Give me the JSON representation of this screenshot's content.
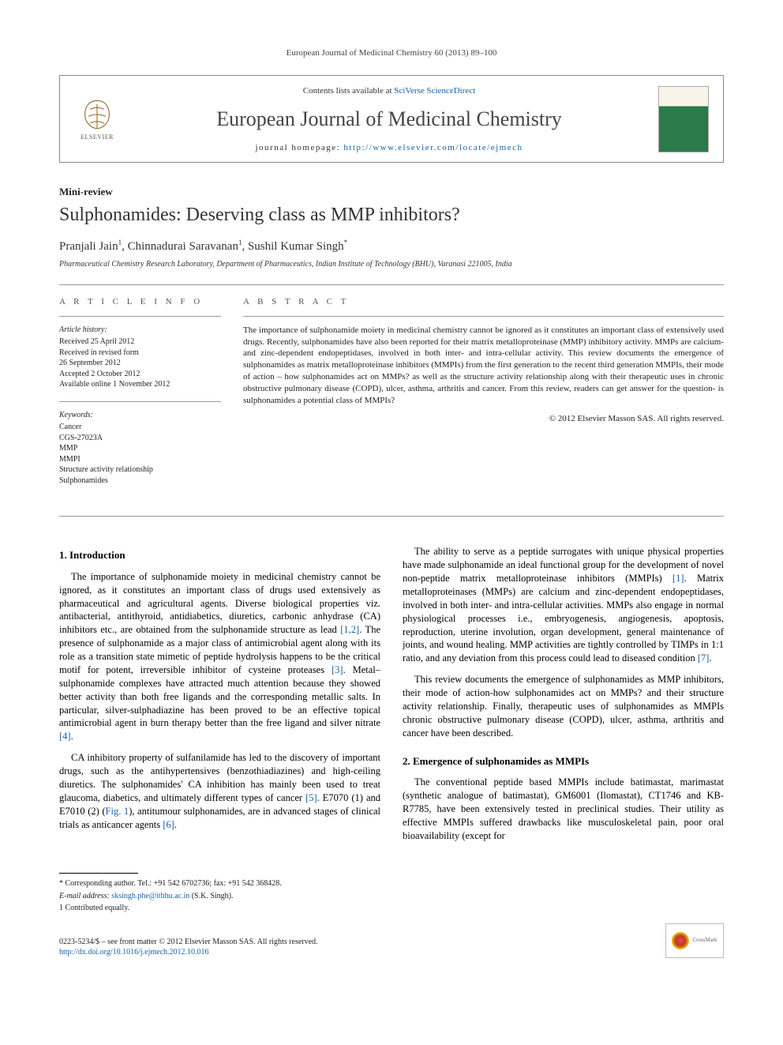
{
  "citation": "European Journal of Medicinal Chemistry 60 (2013) 89–100",
  "header": {
    "contents_prefix": "Contents lists available at ",
    "contents_link": "SciVerse ScienceDirect",
    "journal_name": "European Journal of Medicinal Chemistry",
    "homepage_prefix": "journal homepage: ",
    "homepage_url": "http://www.elsevier.com/locate/ejmech",
    "publisher_label": "ELSEVIER"
  },
  "article": {
    "type": "Mini-review",
    "title": "Sulphonamides: Deserving class as MMP inhibitors?",
    "authors_html": "Pranjali Jain<sup>1</sup>, Chinnadurai Saravanan<sup>1</sup>, Sushil Kumar Singh<sup>*</sup>",
    "authors_text": "Pranjali Jain 1, Chinnadurai Saravanan 1, Sushil Kumar Singh *",
    "affiliation": "Pharmaceutical Chemistry Research Laboratory, Department of Pharmaceutics, Indian Institute of Technology (BHU), Varanasi 221005, India"
  },
  "article_info": {
    "heading": "A R T I C L E   I N F O",
    "history_label": "Article history:",
    "history": [
      "Received 25 April 2012",
      "Received in revised form",
      "26 September 2012",
      "Accepted 2 October 2012",
      "Available online 1 November 2012"
    ],
    "keywords_label": "Keywords:",
    "keywords": [
      "Cancer",
      "CGS-27023A",
      "MMP",
      "MMPI",
      "Structure activity relationship",
      "Sulphonamides"
    ]
  },
  "abstract": {
    "heading": "A B S T R A C T",
    "text": "The importance of sulphonamide moiety in medicinal chemistry cannot be ignored as it constitutes an important class of extensively used drugs. Recently, sulphonamides have also been reported for their matrix metalloproteinase (MMP) inhibitory activity. MMPs are calcium- and zinc-dependent endopeptidases, involved in both inter- and intra-cellular activity. This review documents the emergence of sulphonamides as matrix metalloproteinase inhibitors (MMPIs) from the first generation to the recent third generation MMPIs, their mode of action – how sulphonamides act on MMPs? as well as the structure activity relationship along with their therapeutic uses in chronic obstructive pulmonary disease (COPD), ulcer, asthma, arthritis and cancer. From this review, readers can get answer for the question- is sulphonamides a potential class of MMPIs?",
    "copyright": "© 2012 Elsevier Masson SAS. All rights reserved."
  },
  "sections": {
    "s1": {
      "heading": "1.  Introduction",
      "p1": "The importance of sulphonamide moiety in medicinal chemistry cannot be ignored, as it constitutes an important class of drugs used extensively as pharmaceutical and agricultural agents. Diverse biological properties viz. antibacterial, antithyroid, antidiabetics, diuretics, carbonic anhydrase (CA) inhibitors etc., are obtained from the sulphonamide structure as lead ",
      "p1_ref": "[1,2]",
      "p1b": ". The presence of sulphonamide as a major class of antimicrobial agent along with its role as a transition state mimetic of peptide hydrolysis happens to be the critical motif for potent, irreversible inhibitor of cysteine proteases ",
      "p1b_ref": "[3]",
      "p1c": ". Metal–sulphonamide complexes have attracted much attention because they showed better activity than both free ligands and the corresponding metallic salts. In particular, silver-sulphadiazine has been proved to be an effective topical antimicrobial agent in burn therapy better than the free ligand and silver nitrate ",
      "p1c_ref": "[4]",
      "p1d": ".",
      "p2": "CA inhibitory property of sulfanilamide has led to the discovery of important drugs, such as the antihypertensives (benzothiadiazines) and high-ceiling diuretics. The sulphonamides' CA inhibition has mainly been used to treat glaucoma, diabetics, and ultimately different types of cancer ",
      "p2_ref": "[5]",
      "p2b": ". E7070 (1) and E7010 (2) (",
      "p2_fig": "Fig. 1",
      "p2c": "), antitumour sulphonamides, are in advanced stages of clinical trials as anticancer agents ",
      "p2c_ref": "[6]",
      "p2d": ".",
      "p3": "The ability to serve as a peptide surrogates with unique physical properties have made sulphonamide an ideal functional group for the development of novel non-peptide matrix metalloproteinase inhibitors (MMPIs) ",
      "p3_ref": "[1]",
      "p3b": ". Matrix metalloproteinases (MMPs) are calcium and zinc-dependent endopeptidases, involved in both inter- and intra-cellular activities. MMPs also engage in normal physiological processes i.e., embryogenesis, angiogenesis, apoptosis, reproduction, uterine involution, organ development, general maintenance of joints, and wound healing. MMP activities are tightly controlled by TIMPs in 1:1 ratio, and any deviation from this process could lead to diseased condition ",
      "p3b_ref": "[7]",
      "p3c": ".",
      "p4": "This review documents the emergence of sulphonamides as MMP inhibitors, their mode of action-how sulphonamides act on MMPs? and their structure activity relationship. Finally, therapeutic uses of sulphonamides as MMPIs chronic obstructive pulmonary disease (COPD), ulcer, asthma, arthritis and cancer have been described."
    },
    "s2": {
      "heading": "2.  Emergence of sulphonamides as MMPIs",
      "p1": "The conventional peptide based MMPIs include batimastat, marimastat (synthetic analogue of batimastat), GM6001 (Ilomastat), CT1746 and KB-R7785, have been extensively tested in preclinical studies. Their utility as effective MMPIs suffered drawbacks like musculoskeletal pain, poor oral bioavailability (except for"
    }
  },
  "footnotes": {
    "corr": "* Corresponding author. Tel.: +91 542 6702736; fax: +91 542 368428.",
    "email_label": "E-mail address: ",
    "email": "sksingh.phe@itbhu.ac.in",
    "email_suffix": " (S.K. Singh).",
    "contrib": "1 Contributed equally."
  },
  "footer": {
    "issn_line": "0223-5234/$ – see front matter © 2012 Elsevier Masson SAS. All rights reserved.",
    "doi": "http://dx.doi.org/10.1016/j.ejmech.2012.10.016",
    "crossmark_label": "CrossMark"
  },
  "colors": {
    "link": "#1860a8",
    "rule": "#999999",
    "text": "#222222"
  }
}
